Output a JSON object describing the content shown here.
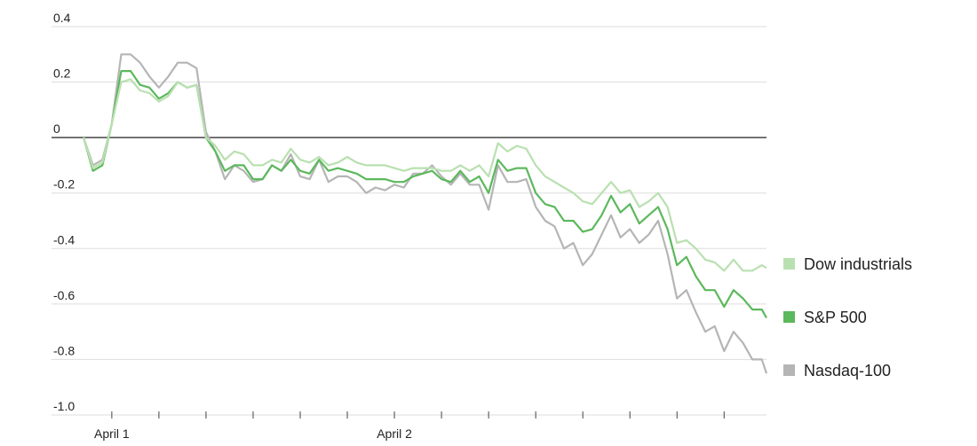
{
  "chart_data": {
    "type": "line",
    "x": [
      -6,
      -4,
      -2,
      0,
      2,
      4,
      6,
      8,
      10,
      12,
      14,
      16,
      18,
      20,
      22,
      24,
      26,
      28,
      30,
      32,
      34,
      36,
      38,
      40,
      42,
      44,
      46,
      48,
      50,
      52,
      54,
      56,
      58,
      60,
      62,
      64,
      66,
      68,
      70,
      72,
      74,
      76,
      78,
      80,
      82,
      84,
      86,
      88,
      90,
      92,
      94,
      96,
      98,
      100,
      102,
      104,
      106,
      108,
      110,
      112,
      114,
      116,
      118,
      120,
      122,
      124,
      126,
      128,
      130,
      132,
      134,
      136,
      138,
      139
    ],
    "series": [
      {
        "name": "Dow industrials",
        "color": "#b9e0b0",
        "values": [
          0,
          -0.11,
          -0.09,
          0.05,
          0.2,
          0.21,
          0.17,
          0.16,
          0.13,
          0.15,
          0.2,
          0.18,
          0.19,
          0.0,
          -0.03,
          -0.08,
          -0.05,
          -0.06,
          -0.1,
          -0.1,
          -0.08,
          -0.09,
          -0.04,
          -0.08,
          -0.09,
          -0.07,
          -0.1,
          -0.09,
          -0.07,
          -0.09,
          -0.1,
          -0.1,
          -0.1,
          -0.11,
          -0.12,
          -0.11,
          -0.11,
          -0.11,
          -0.12,
          -0.12,
          -0.1,
          -0.12,
          -0.1,
          -0.14,
          -0.02,
          -0.05,
          -0.03,
          -0.04,
          -0.1,
          -0.14,
          -0.16,
          -0.18,
          -0.2,
          -0.23,
          -0.24,
          -0.2,
          -0.16,
          -0.2,
          -0.19,
          -0.25,
          -0.23,
          -0.2,
          -0.25,
          -0.38,
          -0.37,
          -0.4,
          -0.44,
          -0.45,
          -0.48,
          -0.44,
          -0.48,
          -0.48,
          -0.46,
          -0.47
        ]
      },
      {
        "name": "S&P 500",
        "color": "#5cb85c",
        "values": [
          0,
          -0.12,
          -0.1,
          0.05,
          0.24,
          0.24,
          0.19,
          0.18,
          0.14,
          0.16,
          0.2,
          0.18,
          0.19,
          0.0,
          -0.05,
          -0.12,
          -0.1,
          -0.1,
          -0.15,
          -0.15,
          -0.1,
          -0.12,
          -0.08,
          -0.12,
          -0.13,
          -0.08,
          -0.12,
          -0.11,
          -0.12,
          -0.13,
          -0.15,
          -0.15,
          -0.15,
          -0.16,
          -0.16,
          -0.14,
          -0.13,
          -0.12,
          -0.15,
          -0.16,
          -0.12,
          -0.16,
          -0.14,
          -0.2,
          -0.08,
          -0.12,
          -0.11,
          -0.11,
          -0.2,
          -0.24,
          -0.25,
          -0.3,
          -0.3,
          -0.34,
          -0.33,
          -0.28,
          -0.21,
          -0.27,
          -0.24,
          -0.31,
          -0.28,
          -0.25,
          -0.33,
          -0.46,
          -0.43,
          -0.5,
          -0.55,
          -0.55,
          -0.61,
          -0.55,
          -0.58,
          -0.62,
          -0.62,
          -0.65
        ]
      },
      {
        "name": "Nasdaq-100",
        "color": "#b5b5b5",
        "values": [
          0,
          -0.1,
          -0.08,
          0.05,
          0.3,
          0.3,
          0.27,
          0.22,
          0.18,
          0.22,
          0.27,
          0.27,
          0.25,
          0.02,
          -0.05,
          -0.15,
          -0.1,
          -0.12,
          -0.16,
          -0.15,
          -0.1,
          -0.12,
          -0.06,
          -0.14,
          -0.15,
          -0.08,
          -0.16,
          -0.14,
          -0.14,
          -0.16,
          -0.2,
          -0.18,
          -0.19,
          -0.17,
          -0.18,
          -0.13,
          -0.13,
          -0.1,
          -0.14,
          -0.17,
          -0.13,
          -0.17,
          -0.17,
          -0.26,
          -0.1,
          -0.16,
          -0.16,
          -0.15,
          -0.25,
          -0.3,
          -0.32,
          -0.4,
          -0.38,
          -0.46,
          -0.42,
          -0.35,
          -0.28,
          -0.36,
          -0.33,
          -0.38,
          -0.35,
          -0.3,
          -0.42,
          -0.58,
          -0.55,
          -0.63,
          -0.7,
          -0.68,
          -0.77,
          -0.7,
          -0.74,
          -0.8,
          -0.8,
          -0.85
        ]
      }
    ],
    "xlim": [
      -6.2,
      139
    ],
    "xticks": [
      {
        "value": 0,
        "label": "April 1"
      },
      {
        "value": 60,
        "label": "April 2"
      }
    ],
    "xminor_ticks": [
      10,
      20,
      30,
      40,
      50,
      70,
      80,
      90,
      100,
      110,
      120,
      130
    ],
    "ylim": [
      -1.0,
      0.4
    ],
    "yticks": [
      0.4,
      0.2,
      0,
      -0.2,
      -0.4,
      -0.6,
      -0.8,
      {
        "value": -1,
        "label": "-1.0"
      }
    ],
    "grid": true,
    "legend": "right"
  }
}
